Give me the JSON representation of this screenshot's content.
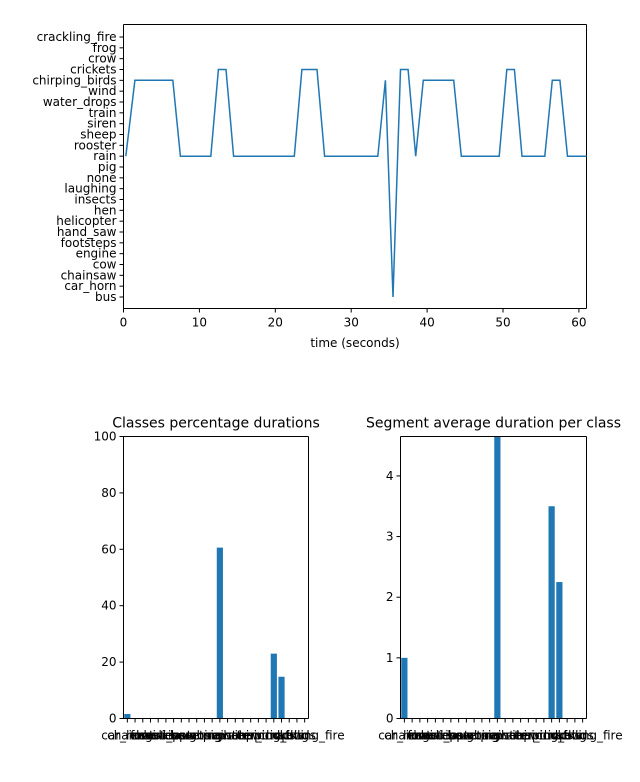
{
  "chart_data": [
    {
      "type": "line",
      "title": "",
      "xlabel": "time (seconds)",
      "ylabel": "",
      "xlim": [
        0,
        61
      ],
      "x_ticks": [
        0,
        10,
        20,
        30,
        40,
        50,
        60
      ],
      "y_categories": [
        "bus",
        "car_horn",
        "chainsaw",
        "cow",
        "engine",
        "footsteps",
        "hand_saw",
        "helicopter",
        "hen",
        "insects",
        "laughing",
        "none",
        "pig",
        "rain",
        "rooster",
        "sheep",
        "siren",
        "train",
        "water_drops",
        "wind",
        "chirping_birds",
        "crickets",
        "crow",
        "frog",
        "crackling_fire"
      ],
      "series": [
        {
          "color": "#1f77b4",
          "x": [
            0.3,
            1.5,
            6.5,
            7.5,
            11.5,
            12.5,
            13.5,
            14.5,
            22.5,
            23.5,
            25.5,
            26.5,
            33.5,
            34.5,
            35.5,
            36.5,
            37.5,
            38.5,
            39.5,
            43.5,
            44.5,
            49.5,
            50.5,
            51.5,
            52.5,
            55.5,
            56.5,
            57.5,
            58.5,
            61
          ],
          "y": [
            "rain",
            "chirping_birds",
            "chirping_birds",
            "rain",
            "rain",
            "crickets",
            "crickets",
            "rain",
            "rain",
            "crickets",
            "crickets",
            "rain",
            "rain",
            "chirping_birds",
            "bus",
            "crickets",
            "crickets",
            "rain",
            "chirping_birds",
            "chirping_birds",
            "rain",
            "rain",
            "crickets",
            "crickets",
            "rain",
            "rain",
            "chirping_birds",
            "chirping_birds",
            "rain",
            "rain"
          ]
        }
      ]
    },
    {
      "type": "bar",
      "title": "Classes percentage durations",
      "xlabel": "",
      "ylabel": "",
      "ylim": [
        0,
        100
      ],
      "y_ticks": [
        0,
        20,
        40,
        60,
        80,
        100
      ],
      "categories": [
        "car_horn",
        "chainsaw",
        "cow",
        "engine",
        "footsteps",
        "hand_saw",
        "helicopter",
        "hen",
        "insects",
        "laughing",
        "none",
        "pig",
        "rain",
        "rooster",
        "sheep",
        "siren",
        "train",
        "water_drops",
        "wind",
        "chirping_birds",
        "crickets",
        "crow",
        "frog",
        "crackling_fire"
      ],
      "values": [
        1.6,
        0,
        0,
        0,
        0,
        0,
        0,
        0,
        0,
        0,
        0,
        0,
        60.6,
        0,
        0,
        0,
        0,
        0,
        0,
        23,
        14.8,
        0,
        0,
        0
      ],
      "color": "#1f77b4"
    },
    {
      "type": "bar",
      "title": "Segment average duration per class",
      "xlabel": "",
      "ylabel": "",
      "ylim": [
        0,
        4.65
      ],
      "y_ticks": [
        0,
        1,
        2,
        3,
        4
      ],
      "categories": [
        "car_horn",
        "chainsaw",
        "cow",
        "engine",
        "footsteps",
        "hand_saw",
        "helicopter",
        "hen",
        "insects",
        "laughing",
        "none",
        "pig",
        "rain",
        "rooster",
        "sheep",
        "siren",
        "train",
        "water_drops",
        "wind",
        "chirping_birds",
        "crickets",
        "crow",
        "frog",
        "crackling_fire"
      ],
      "values": [
        1.0,
        0,
        0,
        0,
        0,
        0,
        0,
        0,
        0,
        0,
        0,
        0,
        4.65,
        0,
        0,
        0,
        0,
        0,
        0,
        3.5,
        2.25,
        0,
        0,
        0
      ],
      "color": "#1f77b4"
    }
  ]
}
